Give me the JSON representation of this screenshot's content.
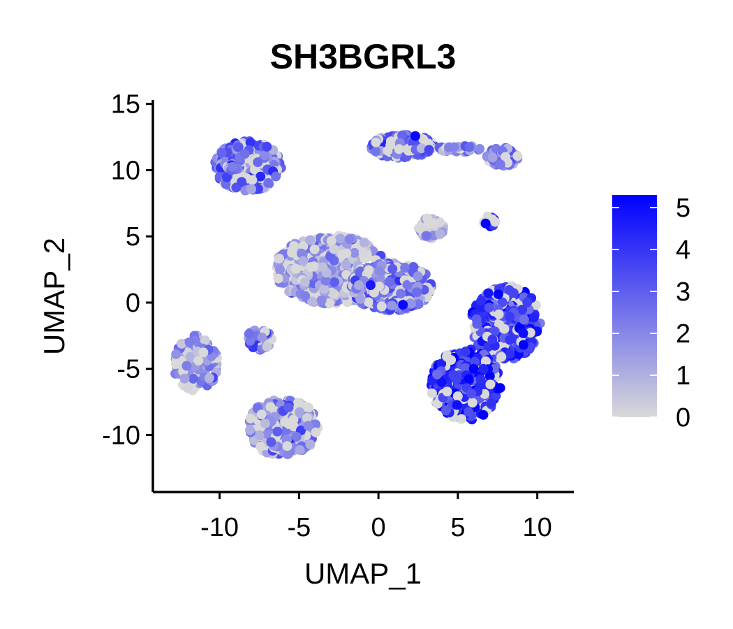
{
  "chart_data": {
    "type": "scatter",
    "title": "SH3BGRL3",
    "xlabel": "UMAP_1",
    "ylabel": "UMAP_2",
    "xlim": [
      -14.2,
      12.3
    ],
    "ylim": [
      -14.3,
      15.3
    ],
    "xticks": [
      -10,
      -5,
      0,
      5,
      10
    ],
    "yticks": [
      15,
      10,
      5,
      0,
      -5,
      -10
    ],
    "grid": false,
    "legend": {
      "placement": "right",
      "type": "colorbar",
      "min": 0,
      "max": 5.3,
      "ticks": [
        0,
        1,
        2,
        3,
        4,
        5
      ],
      "low_color": "#d9d9d9",
      "high_color": "#0000ff"
    },
    "clusters": [
      {
        "cx": -8.2,
        "cy": 10.3,
        "rx": 2.1,
        "ry": 1.9,
        "expr_mean": 2.6,
        "pts": 340
      },
      {
        "cx": 1.5,
        "cy": 11.8,
        "rx": 2.0,
        "ry": 0.9,
        "expr_mean": 2.9,
        "pts": 220
      },
      {
        "cx": 7.8,
        "cy": 11.0,
        "rx": 1.0,
        "ry": 0.7,
        "expr_mean": 2.4,
        "pts": 80
      },
      {
        "cx": 5.2,
        "cy": 11.6,
        "rx": 1.5,
        "ry": 0.25,
        "expr_mean": 2.2,
        "pts": 30
      },
      {
        "cx": 3.3,
        "cy": 5.6,
        "rx": 0.8,
        "ry": 0.8,
        "expr_mean": 0.6,
        "pts": 70
      },
      {
        "cx": 7.0,
        "cy": 6.2,
        "rx": 0.45,
        "ry": 0.45,
        "expr_mean": 4.2,
        "pts": 12
      },
      {
        "cx": -3.0,
        "cy": 2.5,
        "rx": 3.5,
        "ry": 2.6,
        "expr_mean": 1.3,
        "pts": 600
      },
      {
        "cx": 0.8,
        "cy": 1.2,
        "rx": 2.6,
        "ry": 1.8,
        "expr_mean": 2.3,
        "pts": 450
      },
      {
        "cx": -7.5,
        "cy": -2.8,
        "rx": 0.8,
        "ry": 0.8,
        "expr_mean": 2.2,
        "pts": 50
      },
      {
        "cx": -11.5,
        "cy": -4.6,
        "rx": 1.4,
        "ry": 2.1,
        "expr_mean": 1.7,
        "pts": 160
      },
      {
        "cx": -6.0,
        "cy": -9.4,
        "rx": 2.2,
        "ry": 2.2,
        "expr_mean": 1.9,
        "pts": 280
      },
      {
        "cx": 8.0,
        "cy": -1.5,
        "rx": 2.2,
        "ry": 2.8,
        "expr_mean": 4.0,
        "pts": 420
      },
      {
        "cx": 5.5,
        "cy": -6.2,
        "rx": 2.2,
        "ry": 2.7,
        "expr_mean": 4.1,
        "pts": 400
      }
    ]
  }
}
